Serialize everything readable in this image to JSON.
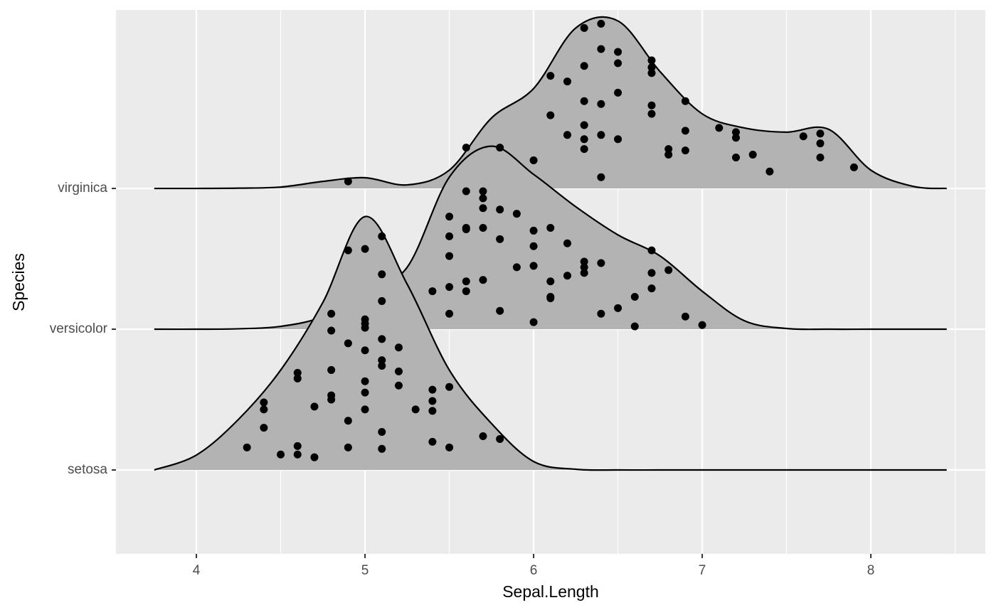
{
  "chart_data": {
    "type": "ridgeline",
    "xlabel": "Sepal.Length",
    "ylabel": "Species",
    "xlim": [
      3.523,
      8.679
    ],
    "ylim": [
      0.404,
      4.268
    ],
    "xticks": [
      4,
      5,
      6,
      7,
      8
    ],
    "minor_xticks": [
      4.5,
      5.5,
      6.5,
      7.5,
      8.5
    ],
    "yticks": [
      {
        "value": 1,
        "label": "setosa"
      },
      {
        "value": 2,
        "label": "versicolor"
      },
      {
        "value": 3,
        "label": "virginica"
      }
    ],
    "grid": true,
    "fill": "#b3b3b3",
    "line_color": "#000000",
    "point_color": "#000000",
    "x": [
      3.75,
      4,
      4.25,
      4.5,
      4.75,
      5,
      5.25,
      5.5,
      5.75,
      6,
      6.25,
      6.5,
      6.75,
      7,
      7.25,
      7.5,
      7.75,
      8,
      8.25,
      8.45
    ],
    "series": [
      {
        "values": [
          1.0,
          1.106,
          1.36,
          1.71,
          2.19,
          2.8,
          2.32,
          1.71,
          1.33,
          1.06,
          1.005,
          1.0,
          1.0,
          1.0,
          1.0,
          1.0,
          1.0,
          1.0,
          1.0,
          1.0
        ],
        "points_x": [
          5.1,
          4.9,
          5.0,
          5.1,
          5.1,
          4.8,
          5.0,
          5.0,
          5.0,
          4.8,
          5.1,
          4.9,
          5.2,
          5.0,
          5.1,
          5.1,
          4.6,
          4.6,
          4.8,
          5.2,
          5.0,
          5.2,
          5.5,
          5.4,
          5.0,
          4.8,
          4.8,
          5.4,
          4.4,
          4.4,
          4.7,
          5.3,
          5.0,
          5.4,
          4.9,
          4.4,
          5.1,
          5.7,
          5.8,
          5.4,
          4.6,
          4.3,
          4.9,
          5.5,
          5.1,
          4.5,
          4.6,
          4.7
        ],
        "points_y": [
          2.66,
          2.56,
          2.57,
          2.39,
          2.2,
          2.11,
          2.07,
          2.04,
          2.01,
          1.99,
          1.93,
          1.9,
          1.87,
          1.85,
          1.78,
          1.74,
          1.69,
          1.65,
          1.71,
          1.7,
          1.63,
          1.6,
          1.59,
          1.57,
          1.55,
          1.53,
          1.5,
          1.49,
          1.48,
          1.43,
          1.45,
          1.43,
          1.43,
          1.42,
          1.35,
          1.3,
          1.27,
          1.24,
          1.22,
          1.2,
          1.17,
          1.16,
          1.16,
          1.16,
          1.15,
          1.11,
          1.11,
          1.09
        ]
      },
      {
        "values": [
          2.0,
          2.0,
          2.003,
          2.02,
          2.09,
          2.27,
          2.44,
          3.08,
          3.3,
          3.1,
          2.87,
          2.67,
          2.52,
          2.27,
          2.06,
          2.005,
          2.0,
          2.0,
          2.0,
          2.0
        ],
        "points_x": [
          5.6,
          5.7,
          5.7,
          5.7,
          5.8,
          5.9,
          5.5,
          5.6,
          5.6,
          5.7,
          5.5,
          6.0,
          6.1,
          5.8,
          6.2,
          6.0,
          6.7,
          5.5,
          6.3,
          6.4,
          5.9,
          6.0,
          6.3,
          6.3,
          6.7,
          6.8,
          6.2,
          5.7,
          5.6,
          6.1,
          5.5,
          5.4,
          5.6,
          6.7,
          6.6,
          6.1,
          6.1,
          6.5,
          6.4,
          5.8,
          5.5,
          6.9,
          6.0,
          7.0,
          6.6
        ],
        "points_y": [
          2.98,
          2.98,
          2.93,
          2.86,
          2.85,
          2.82,
          2.8,
          2.72,
          2.71,
          2.72,
          2.66,
          2.7,
          2.72,
          2.64,
          2.61,
          2.59,
          2.56,
          2.52,
          2.48,
          2.47,
          2.44,
          2.45,
          2.44,
          2.4,
          2.4,
          2.42,
          2.38,
          2.35,
          2.34,
          2.34,
          2.3,
          2.27,
          2.27,
          2.29,
          2.23,
          2.23,
          2.22,
          2.15,
          2.11,
          2.13,
          2.11,
          2.09,
          2.05,
          2.03,
          2.02
        ]
      },
      {
        "values": [
          3.0,
          3.0,
          3.002,
          3.01,
          3.05,
          3.076,
          3.025,
          3.13,
          3.5,
          3.71,
          4.14,
          4.19,
          3.83,
          3.53,
          3.43,
          3.4,
          3.42,
          3.13,
          3.015,
          3.0
        ],
        "points_x": [
          6.3,
          6.4,
          6.4,
          6.5,
          6.5,
          6.7,
          6.7,
          6.7,
          6.1,
          6.2,
          6.3,
          6.5,
          6.3,
          6.4,
          6.9,
          6.7,
          6.7,
          6.1,
          6.3,
          7.1,
          7.2,
          7.2,
          6.9,
          6.2,
          6.4,
          6.3,
          6.5,
          7.6,
          7.7,
          7.7,
          5.6,
          5.8,
          6.3,
          6.8,
          6.9,
          6.8,
          7.2,
          7.3,
          7.7,
          6.0,
          7.9,
          7.4,
          6.4,
          4.9
        ],
        "points_y": [
          4.14,
          4.17,
          3.99,
          3.97,
          3.89,
          3.91,
          3.86,
          3.82,
          3.8,
          3.76,
          3.87,
          3.68,
          3.62,
          3.6,
          3.62,
          3.59,
          3.53,
          3.52,
          3.45,
          3.43,
          3.4,
          3.36,
          3.41,
          3.38,
          3.38,
          3.35,
          3.35,
          3.37,
          3.39,
          3.32,
          3.29,
          3.29,
          3.28,
          3.28,
          3.27,
          3.24,
          3.22,
          3.24,
          3.22,
          3.2,
          3.15,
          3.12,
          3.08,
          3.05
        ]
      }
    ]
  }
}
